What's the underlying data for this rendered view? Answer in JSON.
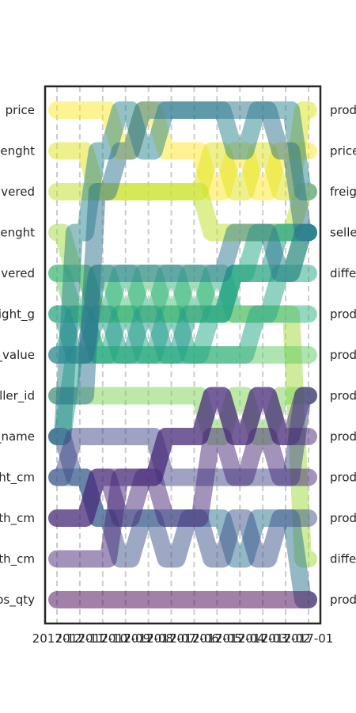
{
  "chart_data": {
    "type": "line",
    "x": [
      "2017-12",
      "2017-11",
      "2017-10",
      "2017-09",
      "2017-08",
      "2017-07",
      "2017-06",
      "2017-05",
      "2017-04",
      "2017-03",
      "2017-02",
      "2017-01"
    ],
    "x_tick_labels": [
      "2017-12",
      "2017-11",
      "2017-10",
      "2017-09",
      "2017-08",
      "2017-07",
      "2017-06",
      "2017-05",
      "2017-04",
      "2017-03",
      "2017-02",
      "2017-01"
    ],
    "left_labels": [
      "price",
      "lenght",
      "ivered",
      "lenght",
      "ivered",
      "ight_g",
      "_value",
      "ller_id",
      "_name",
      "ght_cm",
      "th_cm",
      "th_cm",
      "os_qty"
    ],
    "right_labels": [
      "prod",
      "price",
      "freigh",
      "selle",
      "differ",
      "prod",
      "prod",
      "prod",
      "prod",
      "prod",
      "prod",
      "differ",
      "prod"
    ],
    "ylim": [
      1,
      13
    ],
    "y_inverted": true,
    "grid": "vertical dashed",
    "series": [
      {
        "color": "#fde725",
        "values": [
          1,
          1,
          1,
          2,
          1,
          2,
          2,
          3,
          2,
          3,
          2,
          2
        ]
      },
      {
        "color": "#dde318",
        "values": [
          2,
          2,
          3,
          3,
          3,
          3,
          3,
          2,
          3,
          2,
          3,
          1
        ]
      },
      {
        "color": "#bddf26",
        "values": [
          3,
          3,
          3,
          3,
          3,
          3,
          3,
          4,
          4,
          4,
          4,
          3
        ]
      },
      {
        "color": "#9fda3a",
        "values": [
          4,
          5,
          6,
          6,
          6,
          6,
          6,
          6,
          6,
          6,
          6,
          12
        ]
      },
      {
        "color": "#7ad151",
        "values": [
          8,
          8,
          8,
          8,
          8,
          8,
          8,
          9,
          8,
          9,
          8,
          8
        ]
      },
      {
        "color": "#5ec962",
        "values": [
          5,
          6,
          7,
          7,
          7,
          7,
          7,
          7,
          7,
          7,
          7,
          7
        ]
      },
      {
        "color": "#44bf70",
        "values": [
          6,
          6,
          5,
          6,
          5,
          6,
          5,
          6,
          5,
          5,
          5,
          4
        ]
      },
      {
        "color": "#2db27d",
        "values": [
          5,
          5,
          6,
          5,
          6,
          5,
          6,
          5,
          6,
          6,
          6,
          6
        ]
      },
      {
        "color": "#21a585",
        "values": [
          7,
          6,
          7,
          6,
          7,
          6,
          7,
          7,
          7,
          6,
          5,
          5
        ]
      },
      {
        "color": "#1f988b",
        "values": [
          6,
          7,
          6,
          7,
          6,
          7,
          6,
          6,
          5,
          5,
          4,
          4
        ]
      },
      {
        "color": "#22a884",
        "values": [
          9,
          7,
          7,
          7,
          7,
          7,
          7,
          6,
          5,
          4,
          4,
          4
        ]
      },
      {
        "color": "#2a788e",
        "values": [
          7,
          7,
          5,
          5,
          5,
          5,
          5,
          5,
          4,
          4,
          5,
          4
        ]
      },
      {
        "color": "#25848e",
        "values": [
          9,
          4,
          2,
          1,
          2,
          1,
          1,
          1,
          2,
          1,
          1,
          3
        ]
      },
      {
        "color": "#2c728e",
        "values": [
          8,
          8,
          3,
          2,
          1,
          1,
          1,
          1,
          1,
          1,
          2,
          4
        ]
      },
      {
        "color": "#2c728e",
        "values": [
          10,
          10,
          11,
          11,
          11,
          11,
          11,
          11,
          12,
          11,
          11,
          13
        ]
      },
      {
        "color": "#3b528b",
        "values": [
          9,
          10,
          11,
          12,
          11,
          12,
          11,
          12,
          11,
          12,
          11,
          11
        ]
      },
      {
        "color": "#404688",
        "values": [
          10,
          9,
          9,
          9,
          9,
          10,
          10,
          10,
          10,
          10,
          10,
          8
        ]
      },
      {
        "color": "#472d7b",
        "values": [
          11,
          11,
          10,
          10,
          10,
          9,
          9,
          8,
          9,
          8,
          9,
          8
        ]
      },
      {
        "color": "#482878",
        "values": [
          11,
          11,
          10,
          11,
          10,
          9,
          9,
          8,
          9,
          8,
          9,
          9
        ]
      },
      {
        "color": "#482878",
        "values": [
          12,
          12,
          12,
          10,
          10,
          11,
          11,
          9,
          10,
          9,
          10,
          10
        ]
      },
      {
        "color": "#440154",
        "values": [
          13,
          13,
          13,
          13,
          13,
          13,
          13,
          13,
          13,
          13,
          13,
          13
        ]
      }
    ]
  }
}
